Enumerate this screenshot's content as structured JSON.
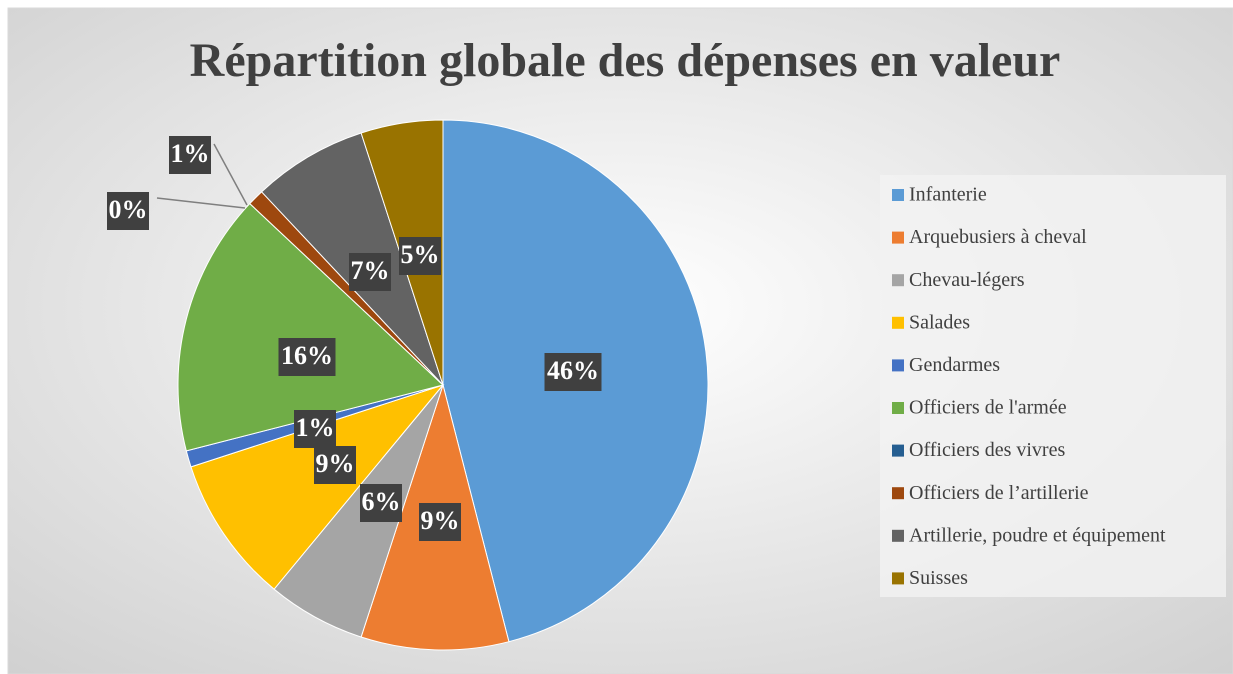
{
  "chart_data": {
    "type": "pie",
    "title": "Répartition globale des dépenses en valeur",
    "categories": [
      "Infanterie",
      "Arquebusiers à cheval",
      "Chevau-légers",
      "Salades",
      "Gendarmes",
      "Officiers de l'armée",
      "Officiers des vivres",
      "Officiers de l’artillerie",
      "Artillerie, poudre et équipement",
      "Suisses"
    ],
    "values": [
      46,
      9,
      6,
      9,
      1,
      16,
      0,
      1,
      7,
      5
    ],
    "value_labels": [
      "46%",
      "9%",
      "6%",
      "9%",
      "1%",
      "16%",
      "0%",
      "1%",
      "7%",
      "5%"
    ],
    "colors": [
      "#5b9bd5",
      "#ed7d31",
      "#a5a5a5",
      "#ffc000",
      "#4472c4",
      "#70ad47",
      "#255e91",
      "#9e480e",
      "#636363",
      "#997300"
    ],
    "legend": "right"
  }
}
